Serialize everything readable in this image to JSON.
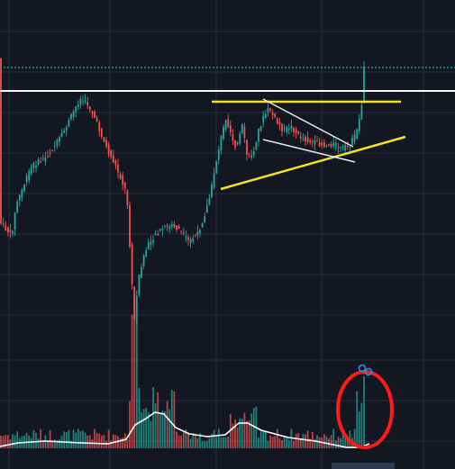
{
  "chart_data": {
    "type": "candlestick",
    "title": "",
    "xlabel": "",
    "ylabel": "",
    "grid": true,
    "colors": {
      "background": "#131722",
      "grid": "#2a2e39",
      "up": "#26a69a",
      "down": "#ef5350",
      "volume_line": "#ffffff",
      "resistance_line": "#ffffff",
      "triangle_lines": "#f5e31a",
      "pennant_lines": "#e6e6e6",
      "price_line": "#26a69a",
      "highlight_circle": "#ff1a1a",
      "marker": "#2196f3"
    },
    "annotations": [
      {
        "kind": "horizontal-resistance",
        "color": "#ffffff"
      },
      {
        "kind": "horizontal-price-line",
        "style": "dotted",
        "color": "#26a69a"
      },
      {
        "kind": "ascending-triangle",
        "color": "#f5e31a"
      },
      {
        "kind": "pennant",
        "color": "#e6e6e6"
      },
      {
        "kind": "circle-around-volume-spike",
        "color": "#ff1a1a"
      }
    ]
  }
}
